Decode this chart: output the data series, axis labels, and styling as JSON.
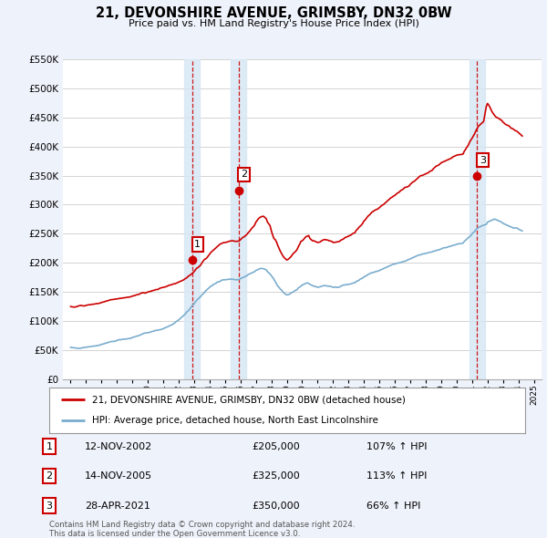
{
  "title": "21, DEVONSHIRE AVENUE, GRIMSBY, DN32 0BW",
  "subtitle": "Price paid vs. HM Land Registry's House Price Index (HPI)",
  "legend_line1": "21, DEVONSHIRE AVENUE, GRIMSBY, DN32 0BW (detached house)",
  "legend_line2": "HPI: Average price, detached house, North East Lincolnshire",
  "footer1": "Contains HM Land Registry data © Crown copyright and database right 2024.",
  "footer2": "This data is licensed under the Open Government Licence v3.0.",
  "transactions": [
    {
      "num": 1,
      "date": "12-NOV-2002",
      "price": 205000,
      "pct": "107%",
      "direction": "↑",
      "year": 2002.87
    },
    {
      "num": 2,
      "date": "14-NOV-2005",
      "price": 325000,
      "pct": "113%",
      "direction": "↑",
      "year": 2005.87
    },
    {
      "num": 3,
      "date": "28-APR-2021",
      "price": 350000,
      "pct": "66%",
      "direction": "↑",
      "year": 2021.33
    }
  ],
  "hpi_data": {
    "years": [
      1995.0,
      1995.083,
      1995.167,
      1995.25,
      1995.333,
      1995.417,
      1995.5,
      1995.583,
      1995.667,
      1995.75,
      1995.833,
      1995.917,
      1996.0,
      1996.083,
      1996.167,
      1996.25,
      1996.333,
      1996.417,
      1996.5,
      1996.583,
      1996.667,
      1996.75,
      1996.833,
      1996.917,
      1997.0,
      1997.083,
      1997.167,
      1997.25,
      1997.333,
      1997.417,
      1997.5,
      1997.583,
      1997.667,
      1997.75,
      1997.833,
      1997.917,
      1998.0,
      1998.083,
      1998.167,
      1998.25,
      1998.333,
      1998.417,
      1998.5,
      1998.583,
      1998.667,
      1998.75,
      1998.833,
      1998.917,
      1999.0,
      1999.083,
      1999.167,
      1999.25,
      1999.333,
      1999.417,
      1999.5,
      1999.583,
      1999.667,
      1999.75,
      1999.833,
      1999.917,
      2000.0,
      2000.083,
      2000.167,
      2000.25,
      2000.333,
      2000.417,
      2000.5,
      2000.583,
      2000.667,
      2000.75,
      2000.833,
      2000.917,
      2001.0,
      2001.083,
      2001.167,
      2001.25,
      2001.333,
      2001.417,
      2001.5,
      2001.583,
      2001.667,
      2001.75,
      2001.833,
      2001.917,
      2002.0,
      2002.083,
      2002.167,
      2002.25,
      2002.333,
      2002.417,
      2002.5,
      2002.583,
      2002.667,
      2002.75,
      2002.833,
      2002.917,
      2003.0,
      2003.083,
      2003.167,
      2003.25,
      2003.333,
      2003.417,
      2003.5,
      2003.583,
      2003.667,
      2003.75,
      2003.833,
      2003.917,
      2004.0,
      2004.083,
      2004.167,
      2004.25,
      2004.333,
      2004.417,
      2004.5,
      2004.583,
      2004.667,
      2004.75,
      2004.833,
      2004.917,
      2005.0,
      2005.083,
      2005.167,
      2005.25,
      2005.333,
      2005.417,
      2005.5,
      2005.583,
      2005.667,
      2005.75,
      2005.833,
      2005.917,
      2006.0,
      2006.083,
      2006.167,
      2006.25,
      2006.333,
      2006.417,
      2006.5,
      2006.583,
      2006.667,
      2006.75,
      2006.833,
      2006.917,
      2007.0,
      2007.083,
      2007.167,
      2007.25,
      2007.333,
      2007.417,
      2007.5,
      2007.583,
      2007.667,
      2007.75,
      2007.833,
      2007.917,
      2008.0,
      2008.083,
      2008.167,
      2008.25,
      2008.333,
      2008.417,
      2008.5,
      2008.583,
      2008.667,
      2008.75,
      2008.833,
      2008.917,
      2009.0,
      2009.083,
      2009.167,
      2009.25,
      2009.333,
      2009.417,
      2009.5,
      2009.583,
      2009.667,
      2009.75,
      2009.833,
      2009.917,
      2010.0,
      2010.083,
      2010.167,
      2010.25,
      2010.333,
      2010.417,
      2010.5,
      2010.583,
      2010.667,
      2010.75,
      2010.833,
      2010.917,
      2011.0,
      2011.083,
      2011.167,
      2011.25,
      2011.333,
      2011.417,
      2011.5,
      2011.583,
      2011.667,
      2011.75,
      2011.833,
      2011.917,
      2012.0,
      2012.083,
      2012.167,
      2012.25,
      2012.333,
      2012.417,
      2012.5,
      2012.583,
      2012.667,
      2012.75,
      2012.833,
      2012.917,
      2013.0,
      2013.083,
      2013.167,
      2013.25,
      2013.333,
      2013.417,
      2013.5,
      2013.583,
      2013.667,
      2013.75,
      2013.833,
      2013.917,
      2014.0,
      2014.083,
      2014.167,
      2014.25,
      2014.333,
      2014.417,
      2014.5,
      2014.583,
      2014.667,
      2014.75,
      2014.833,
      2014.917,
      2015.0,
      2015.083,
      2015.167,
      2015.25,
      2015.333,
      2015.417,
      2015.5,
      2015.583,
      2015.667,
      2015.75,
      2015.833,
      2015.917,
      2016.0,
      2016.083,
      2016.167,
      2016.25,
      2016.333,
      2016.417,
      2016.5,
      2016.583,
      2016.667,
      2016.75,
      2016.833,
      2016.917,
      2017.0,
      2017.083,
      2017.167,
      2017.25,
      2017.333,
      2017.417,
      2017.5,
      2017.583,
      2017.667,
      2017.75,
      2017.833,
      2017.917,
      2018.0,
      2018.083,
      2018.167,
      2018.25,
      2018.333,
      2018.417,
      2018.5,
      2018.583,
      2018.667,
      2018.75,
      2018.833,
      2018.917,
      2019.0,
      2019.083,
      2019.167,
      2019.25,
      2019.333,
      2019.417,
      2019.5,
      2019.583,
      2019.667,
      2019.75,
      2019.833,
      2019.917,
      2020.0,
      2020.083,
      2020.167,
      2020.25,
      2020.333,
      2020.417,
      2020.5,
      2020.583,
      2020.667,
      2020.75,
      2020.833,
      2020.917,
      2021.0,
      2021.083,
      2021.167,
      2021.25,
      2021.333,
      2021.417,
      2021.5,
      2021.583,
      2021.667,
      2021.75,
      2021.833,
      2021.917,
      2022.0,
      2022.083,
      2022.167,
      2022.25,
      2022.333,
      2022.417,
      2022.5,
      2022.583,
      2022.667,
      2022.75,
      2022.833,
      2022.917,
      2023.0,
      2023.083,
      2023.167,
      2023.25,
      2023.333,
      2023.417,
      2023.5,
      2023.583,
      2023.667,
      2023.75,
      2023.833,
      2023.917,
      2024.0,
      2024.083,
      2024.167,
      2024.25
    ],
    "hpi_values": [
      55000,
      54500,
      54200,
      54000,
      53800,
      53500,
      53000,
      53200,
      53500,
      54000,
      54500,
      54800,
      55000,
      55300,
      55700,
      56000,
      56400,
      56800,
      57000,
      57200,
      57500,
      58000,
      58500,
      59000,
      60000,
      60500,
      61000,
      62000,
      62500,
      63000,
      64000,
      64500,
      65000,
      65000,
      65200,
      65500,
      67000,
      67500,
      68000,
      68000,
      68500,
      69000,
      69000,
      69200,
      69500,
      70000,
      70200,
      70500,
      72000,
      72500,
      73000,
      74000,
      74500,
      75000,
      76000,
      77000,
      78000,
      79000,
      79500,
      80000,
      80000,
      80500,
      81000,
      82000,
      82500,
      83000,
      84000,
      84200,
      84500,
      85000,
      85500,
      86000,
      87000,
      88000,
      89000,
      90000,
      91000,
      92000,
      93000,
      94000,
      95500,
      97000,
      99000,
      100500,
      102000,
      104000,
      106000,
      108000,
      110000,
      112000,
      115000,
      117000,
      119000,
      122000,
      125000,
      127500,
      130000,
      133000,
      136000,
      138000,
      140000,
      142000,
      145000,
      147000,
      149000,
      152000,
      154000,
      156000,
      158000,
      160000,
      161000,
      163000,
      164000,
      165000,
      167000,
      167500,
      168000,
      170000,
      170500,
      171000,
      171000,
      171200,
      171500,
      172000,
      172000,
      171800,
      172000,
      171500,
      171000,
      171000,
      171200,
      171500,
      173000,
      174000,
      175000,
      176000,
      177000,
      178000,
      180000,
      181000,
      182000,
      183000,
      184000,
      185000,
      187000,
      188000,
      189000,
      190000,
      190500,
      190200,
      190000,
      189000,
      188000,
      185000,
      183000,
      181000,
      178000,
      175000,
      172000,
      168000,
      164000,
      160000,
      158000,
      155000,
      153000,
      150000,
      148000,
      146000,
      145000,
      145500,
      146000,
      148000,
      149000,
      150000,
      152000,
      153000,
      154000,
      157000,
      158500,
      160000,
      162000,
      163000,
      164000,
      165000,
      165500,
      165000,
      163000,
      162000,
      161000,
      160000,
      159500,
      159000,
      158000,
      158500,
      159000,
      160000,
      160500,
      161000,
      161000,
      160500,
      160000,
      160000,
      159500,
      159000,
      158000,
      158200,
      158500,
      158000,
      158000,
      158500,
      160000,
      161000,
      162000,
      162000,
      162500,
      163000,
      163000,
      163500,
      164000,
      165000,
      165500,
      166000,
      168000,
      169000,
      170000,
      172000,
      173000,
      174000,
      176000,
      177000,
      178000,
      180000,
      181000,
      182000,
      183000,
      183500,
      184000,
      185000,
      185500,
      186000,
      187000,
      188000,
      189000,
      190000,
      191000,
      192000,
      193000,
      194000,
      195000,
      196000,
      197000,
      198000,
      198000,
      199000,
      199500,
      200000,
      200500,
      201000,
      202000,
      202500,
      203000,
      204000,
      205000,
      206000,
      207000,
      208000,
      209000,
      210000,
      211000,
      212000,
      213000,
      213500,
      214000,
      215000,
      215500,
      216000,
      216000,
      217000,
      217500,
      218000,
      218500,
      219000,
      220000,
      220500,
      221000,
      222000,
      222500,
      223000,
      224000,
      225000,
      226000,
      226000,
      226500,
      227000,
      228000,
      228500,
      229000,
      230000,
      230500,
      231000,
      232000,
      232500,
      233000,
      233000,
      233500,
      234000,
      237000,
      239000,
      241000,
      243000,
      245000,
      247000,
      250000,
      252000,
      254000,
      257000,
      259000,
      261000,
      262000,
      263000,
      264000,
      265000,
      265500,
      266000,
      270000,
      271000,
      272000,
      273000,
      274000,
      275000,
      275000,
      274000,
      273000,
      272000,
      271000,
      270000,
      268000,
      267000,
      266000,
      265000,
      264000,
      263000,
      262000,
      261000,
      260000,
      260000,
      260000,
      260000,
      258000,
      257000,
      256000,
      255000
    ],
    "property_values": [
      125000,
      124500,
      124200,
      124000,
      124500,
      125000,
      126000,
      126500,
      127000,
      126500,
      126000,
      126200,
      127000,
      127500,
      128000,
      128000,
      128500,
      129000,
      129000,
      129500,
      130000,
      130000,
      130500,
      131000,
      132000,
      132500,
      133000,
      134000,
      134500,
      135000,
      136000,
      136500,
      137000,
      137000,
      137500,
      138000,
      138000,
      138500,
      139000,
      139000,
      139500,
      140000,
      140000,
      140500,
      141000,
      141000,
      141500,
      142000,
      143000,
      143500,
      144000,
      145000,
      145500,
      146000,
      147000,
      148000,
      149000,
      148500,
      148000,
      149000,
      150000,
      150500,
      151000,
      152000,
      152500,
      153000,
      154000,
      154200,
      154500,
      156000,
      157000,
      157500,
      158000,
      158500,
      159000,
      160000,
      161000,
      162000,
      162000,
      163000,
      164000,
      164000,
      165000,
      166000,
      167000,
      168000,
      169000,
      170000,
      171000,
      173000,
      174000,
      176000,
      178000,
      179000,
      181000,
      183000,
      185000,
      188000,
      191000,
      192000,
      194000,
      196000,
      200000,
      203000,
      206000,
      207000,
      209000,
      212000,
      215000,
      218000,
      220000,
      222000,
      224000,
      226000,
      228000,
      230000,
      232000,
      233000,
      234000,
      235000,
      235000,
      235500,
      236000,
      237000,
      237500,
      238000,
      238000,
      237500,
      237000,
      237000,
      237200,
      237500,
      240000,
      242000,
      244000,
      245000,
      247000,
      249000,
      252000,
      254000,
      257000,
      260000,
      262000,
      265000,
      270000,
      273000,
      276000,
      278000,
      279000,
      280000,
      280000,
      278000,
      276000,
      270000,
      267000,
      264000,
      255000,
      248000,
      242000,
      240000,
      236000,
      230000,
      225000,
      220000,
      216000,
      212000,
      209000,
      207000,
      205000,
      206000,
      208000,
      210000,
      213000,
      216000,
      218000,
      220000,
      223000,
      228000,
      232000,
      237000,
      238000,
      240000,
      243000,
      245000,
      246000,
      247000,
      242000,
      240000,
      238000,
      238000,
      237000,
      236000,
      235000,
      235500,
      236000,
      238000,
      239000,
      240000,
      240000,
      239500,
      239000,
      238000,
      237500,
      237000,
      235000,
      235200,
      235500,
      236000,
      236500,
      237000,
      239000,
      240000,
      241000,
      243000,
      244000,
      245000,
      246000,
      247000,
      248000,
      250000,
      251000,
      252000,
      256000,
      258000,
      261000,
      263000,
      265000,
      268000,
      272000,
      274000,
      277000,
      280000,
      282000,
      284000,
      287000,
      288000,
      290000,
      291000,
      292000,
      293000,
      295000,
      297000,
      299000,
      300000,
      302000,
      304000,
      306000,
      308000,
      310000,
      312000,
      313000,
      315000,
      316000,
      318000,
      320000,
      321000,
      323000,
      325000,
      326000,
      328000,
      330000,
      330000,
      331000,
      332000,
      335000,
      337000,
      339000,
      340000,
      342000,
      344000,
      346000,
      348000,
      350000,
      350000,
      351000,
      352000,
      353000,
      354000,
      355000,
      357000,
      358000,
      359000,
      362000,
      364000,
      366000,
      367000,
      368000,
      370000,
      372000,
      373000,
      374000,
      375000,
      376000,
      377000,
      378000,
      379000,
      380000,
      382000,
      383000,
      384000,
      385000,
      385500,
      386000,
      386000,
      386500,
      387000,
      392000,
      395000,
      399000,
      402000,
      407000,
      411000,
      414000,
      418000,
      422000,
      427000,
      431000,
      435000,
      437000,
      439000,
      441000,
      443000,
      455000,
      468000,
      474000,
      471000,
      467000,
      462000,
      458000,
      455000,
      452000,
      450000,
      449000,
      448000,
      446000,
      445000,
      442000,
      440000,
      438000,
      437000,
      436000,
      435000,
      432000,
      431000,
      430000,
      428000,
      427000,
      426000,
      424000,
      422000,
      420000,
      418000
    ]
  },
  "ylim": [
    0,
    550000
  ],
  "yticks": [
    0,
    50000,
    100000,
    150000,
    200000,
    250000,
    300000,
    350000,
    400000,
    450000,
    500000,
    550000
  ],
  "xlim": [
    1994.5,
    2025.5
  ],
  "background_color": "#eef2fa",
  "plot_bg_color": "#ffffff",
  "red_color": "#cc0000",
  "blue_color": "#7aadce",
  "grid_color": "#cccccc",
  "vline_color": "#cc0000",
  "vline_bg_color": "#d8e8f5"
}
